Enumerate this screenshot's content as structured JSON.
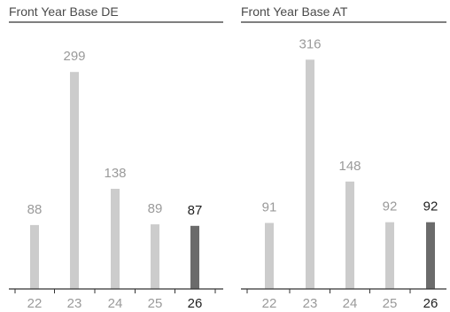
{
  "chart_data": [
    {
      "type": "bar",
      "title": "Front Year Base DE",
      "categories": [
        "22",
        "23",
        "24",
        "25",
        "26"
      ],
      "values": [
        88,
        299,
        138,
        89,
        87
      ],
      "highlight_index": 4,
      "ylim": [
        0,
        320
      ],
      "grid": false,
      "colors": {
        "base": "#cccccc",
        "highlight": "#6b6b6b",
        "axis": "#333333"
      }
    },
    {
      "type": "bar",
      "title": "Front Year Base AT",
      "categories": [
        "22",
        "23",
        "24",
        "25",
        "26"
      ],
      "values": [
        91,
        316,
        148,
        92,
        92
      ],
      "highlight_index": 4,
      "ylim": [
        0,
        320
      ],
      "grid": false,
      "colors": {
        "base": "#cccccc",
        "highlight": "#6b6b6b",
        "axis": "#333333"
      }
    }
  ]
}
